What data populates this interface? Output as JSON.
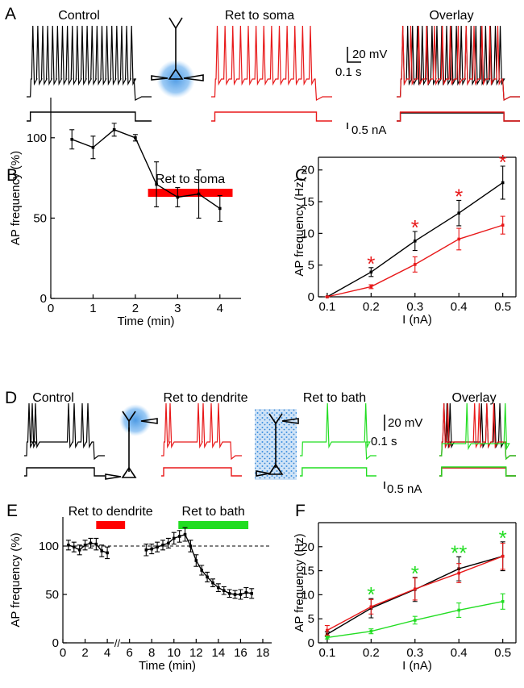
{
  "panel_a": {
    "letter": "A",
    "titles": [
      "Control",
      "Ret to soma",
      "Overlay"
    ],
    "scale_v": "20 mV",
    "scale_t": "0.1 s",
    "scale_i": "0.5 nA"
  },
  "panel_d": {
    "letter": "D",
    "titles": [
      "Control",
      "Ret to dendrite",
      "Ret to bath",
      "Overlay"
    ],
    "scale_v": "20 mV",
    "scale_t": "0.1 s",
    "scale_i": "0.5 nA"
  },
  "chart_data": [
    {
      "type": "line",
      "panel": "B",
      "xlabel": "Time (min)",
      "ylabel": "AP frequency (%)",
      "x": [
        0.5,
        1,
        1.5,
        2,
        2.5,
        3,
        3.5,
        4
      ],
      "series": [
        {
          "color": "#000000",
          "values": [
            99,
            94,
            105,
            100,
            71,
            63,
            65,
            56
          ],
          "errors": [
            6,
            7,
            4,
            2,
            14,
            6,
            15,
            8
          ]
        }
      ],
      "xlim": [
        0,
        4.5
      ],
      "xticks": [
        0,
        1,
        2,
        3,
        4
      ],
      "ylim": [
        0,
        125
      ],
      "yticks": [
        0,
        50,
        100
      ],
      "bars": [
        {
          "label": "Ret to soma",
          "start": 2.3,
          "end": 4.3,
          "color": "#ff0000"
        }
      ],
      "frame": false
    },
    {
      "type": "line",
      "panel": "C",
      "xlabel": "I (nA)",
      "ylabel": "AP frequency (Hz)",
      "x": [
        0.1,
        0.2,
        0.3,
        0.4,
        0.5
      ],
      "series": [
        {
          "color": "#000000",
          "values": [
            0,
            3.9,
            8.8,
            13.2,
            18
          ],
          "errors": [
            0,
            0.7,
            1.5,
            2,
            2.6
          ]
        },
        {
          "color": "#e8191a",
          "values": [
            0,
            1.6,
            5.1,
            9.1,
            11.3
          ],
          "errors": [
            0,
            0.3,
            1.2,
            1.7,
            1.4
          ],
          "significance": [
            null,
            "*",
            "*",
            "*",
            "*"
          ]
        }
      ],
      "xlim": [
        0.08,
        0.53
      ],
      "xticks": [
        0.1,
        0.2,
        0.3,
        0.4,
        0.5
      ],
      "ylim": [
        0,
        22
      ],
      "yticks": [
        0,
        5,
        10,
        15,
        20
      ],
      "frame": true
    },
    {
      "type": "line",
      "panel": "E",
      "xlabel": "Time (min)",
      "ylabel": "AP frequency (%)",
      "x": [
        0.5,
        1,
        1.5,
        2,
        2.5,
        3,
        3.5,
        4,
        4.5,
        7.5,
        8,
        8.5,
        9,
        9.5,
        10,
        10.5,
        11,
        11.5,
        12,
        12.5,
        13,
        13.5,
        14,
        14.5,
        15,
        15.5,
        16,
        16.5,
        17
      ],
      "series": [
        {
          "color": "#000000",
          "values": [
            101,
            99,
            96,
            101,
            103,
            102,
            95,
            93,
            null,
            96,
            97,
            99,
            101,
            103,
            108,
            110,
            112,
            100,
            85,
            75,
            68,
            62,
            57,
            54,
            51,
            50,
            50,
            52,
            51
          ],
          "errors": [
            5,
            5,
            5,
            5,
            5,
            6,
            6,
            6,
            null,
            6,
            5,
            5,
            5,
            5,
            6,
            6,
            7,
            6,
            6,
            5,
            5,
            4,
            4,
            4,
            4,
            4,
            5,
            5,
            5
          ]
        }
      ],
      "xlim": [
        0,
        18.8
      ],
      "xticks": [
        0,
        2,
        4,
        6,
        8,
        10,
        12,
        14,
        16,
        18
      ],
      "ylim": [
        0,
        130
      ],
      "yticks": [
        0,
        50,
        100
      ],
      "reference_line": 100,
      "bars": [
        {
          "label": "Ret to dendrite",
          "start": 3.0,
          "end": 5.6,
          "color": "#ff0000"
        },
        {
          "label": "Ret to bath",
          "start": 10.4,
          "end": 16.7,
          "color": "#22dd22"
        }
      ],
      "frame": false
    },
    {
      "type": "line",
      "panel": "F",
      "xlabel": "I (nA)",
      "ylabel": "AP frequency (Hz)",
      "x": [
        0.1,
        0.2,
        0.3,
        0.4,
        0.5
      ],
      "series": [
        {
          "color": "#000000",
          "values": [
            1.8,
            7.2,
            11.1,
            15.4,
            18
          ],
          "errors": [
            0.5,
            2,
            2.5,
            2.5,
            3
          ]
        },
        {
          "color": "#e8191a",
          "values": [
            2.6,
            7.5,
            11.2,
            14.5,
            18
          ],
          "errors": [
            1,
            1.5,
            2.3,
            2,
            2.7
          ]
        },
        {
          "color": "#22dd22",
          "values": [
            1.1,
            2.4,
            4.7,
            6.8,
            8.6
          ],
          "errors": [
            0.3,
            0.5,
            0.8,
            1.5,
            1.6
          ],
          "significance": [
            null,
            "*",
            "*",
            "**",
            "*"
          ]
        }
      ],
      "xlim": [
        0.08,
        0.53
      ],
      "xticks": [
        0.1,
        0.2,
        0.3,
        0.4,
        0.5
      ],
      "ylim": [
        0,
        25
      ],
      "yticks": [
        0,
        5,
        10,
        15,
        20
      ],
      "frame": true
    }
  ]
}
